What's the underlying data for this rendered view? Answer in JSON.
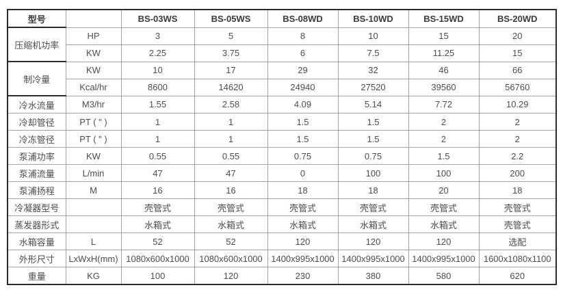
{
  "table": {
    "header": {
      "model_label": "型号",
      "unit_header": "",
      "models": [
        "BS-03WS",
        "BS-05WS",
        "BS-08WD",
        "BS-10WD",
        "BS-15WD",
        "BS-20WD"
      ]
    },
    "rows": [
      {
        "label": "压缩机功率",
        "rowspan": 2,
        "dark_label": true,
        "unit": "HP",
        "values": [
          "3",
          "5",
          "8",
          "10",
          "15",
          "20"
        ]
      },
      {
        "unit": "KW",
        "values": [
          "2.25",
          "3.75",
          "6",
          "7.5",
          "11.25",
          "15"
        ]
      },
      {
        "label": "制冷量",
        "rowspan": 2,
        "dark_label": true,
        "unit": "KW",
        "values": [
          "10",
          "17",
          "29",
          "32",
          "46",
          "66"
        ]
      },
      {
        "unit": "Kcal/hr",
        "values": [
          "8600",
          "14620",
          "24940",
          "27520",
          "39560",
          "56760"
        ]
      },
      {
        "label": "冷水流量",
        "unit": "M3/hr",
        "values": [
          "1.55",
          "2.58",
          "4.09",
          "5.14",
          "7.72",
          "10.29"
        ]
      },
      {
        "label": "冷却管径",
        "unit": "PT ( \" )",
        "values": [
          "1",
          "1",
          "1.5",
          "1.5",
          "2",
          "2"
        ]
      },
      {
        "label": "冷冻管径",
        "unit": "PT ( \" )",
        "values": [
          "1",
          "1",
          "1.5",
          "1.5",
          "2",
          "2"
        ]
      },
      {
        "label": "泵浦功率",
        "unit": "KW",
        "values": [
          "0.55",
          "0.55",
          "0.75",
          "0.75",
          "1.5",
          "2.2"
        ]
      },
      {
        "label": "泵浦流量",
        "unit": "L/min",
        "values": [
          "47",
          "47",
          "0",
          "100",
          "100",
          "200"
        ]
      },
      {
        "label": "泵浦扬程",
        "unit": "M",
        "values": [
          "16",
          "16",
          "18",
          "18",
          "20",
          "18"
        ]
      },
      {
        "label": "冷凝器型号",
        "unit": "",
        "values": [
          "壳管式",
          "壳管式",
          "壳管式",
          "壳管式",
          "壳管式",
          "壳管式"
        ]
      },
      {
        "label": "蒸发器形式",
        "unit": "",
        "values": [
          "水箱式",
          "水箱式",
          "水箱式",
          "水箱式",
          "水箱式",
          "壳管式"
        ]
      },
      {
        "label": "水箱容量",
        "unit": "L",
        "values": [
          "52",
          "52",
          "120",
          "120",
          "120",
          "选配"
        ]
      },
      {
        "label": "外形尺寸",
        "unit": "LxWxH(mm)",
        "values": [
          "1080x600x1000",
          "1080x600x1000",
          "1400x995x1000",
          "1400x995x1000",
          "1400x995x1000",
          "1600x1080x1100"
        ]
      },
      {
        "label": "重量",
        "unit": "KG",
        "values": [
          "100",
          "120",
          "230",
          "380",
          "580",
          "620"
        ]
      }
    ]
  }
}
